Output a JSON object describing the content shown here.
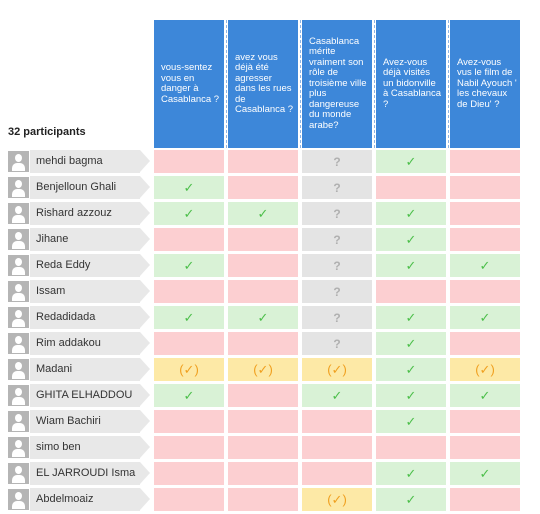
{
  "participants_label": "32 participants",
  "questions": [
    "vous-sentez vous en danger à Casablanca ?",
    "avez vous déjà été agresser dans les rues de Casablanca ?",
    "Casablanca mérite vraiment son rôle de troisième ville plus dangereuse du monde arabe?",
    "Avez-vous déjà visités un bidonville à Casablanca ?",
    "Avez-vous vus le film de Nabil Ayouch ' les chevaux de Dieu' ?"
  ],
  "marks": {
    "yes": "✓",
    "maybe": "(✓)",
    "unknown": "?"
  },
  "colors": {
    "header": "#3d87d9",
    "yes": "#d9f2d6",
    "no": "#fccfd1",
    "maybe": "#fde9a6",
    "unknown": "#e4e4e4"
  },
  "icons": {
    "avatar": "user-icon"
  },
  "rows": [
    {
      "name": "mehdi bagma",
      "answers": [
        "no",
        "no",
        "unknown",
        "yes",
        "no"
      ]
    },
    {
      "name": "Benjelloun Ghali",
      "answers": [
        "yes",
        "no",
        "unknown",
        "no",
        "no"
      ]
    },
    {
      "name": "Rishard azzouz",
      "answers": [
        "yes",
        "yes",
        "unknown",
        "yes",
        "no"
      ]
    },
    {
      "name": "Jihane",
      "answers": [
        "no",
        "no",
        "unknown",
        "yes",
        "no"
      ]
    },
    {
      "name": "Reda Eddy",
      "answers": [
        "yes",
        "no",
        "unknown",
        "yes",
        "yes"
      ]
    },
    {
      "name": "Issam",
      "answers": [
        "no",
        "no",
        "unknown",
        "no",
        "no"
      ]
    },
    {
      "name": "Redadidada",
      "answers": [
        "yes",
        "yes",
        "unknown",
        "yes",
        "yes"
      ]
    },
    {
      "name": "Rim addakou",
      "answers": [
        "no",
        "no",
        "unknown",
        "yes",
        "no"
      ]
    },
    {
      "name": "Madani",
      "answers": [
        "maybe",
        "maybe",
        "maybe",
        "yes",
        "maybe"
      ]
    },
    {
      "name": "GHITA ELHADDOU",
      "answers": [
        "yes",
        "no",
        "yes",
        "yes",
        "yes"
      ]
    },
    {
      "name": "Wiam Bachiri",
      "answers": [
        "no",
        "no",
        "no",
        "yes",
        "no"
      ]
    },
    {
      "name": "simo ben",
      "answers": [
        "no",
        "no",
        "no",
        "no",
        "no"
      ]
    },
    {
      "name": "EL JARROUDI Isma",
      "answers": [
        "no",
        "no",
        "no",
        "yes",
        "yes"
      ]
    },
    {
      "name": "Abdelmoaiz",
      "answers": [
        "no",
        "no",
        "maybe",
        "yes",
        "no"
      ]
    }
  ]
}
